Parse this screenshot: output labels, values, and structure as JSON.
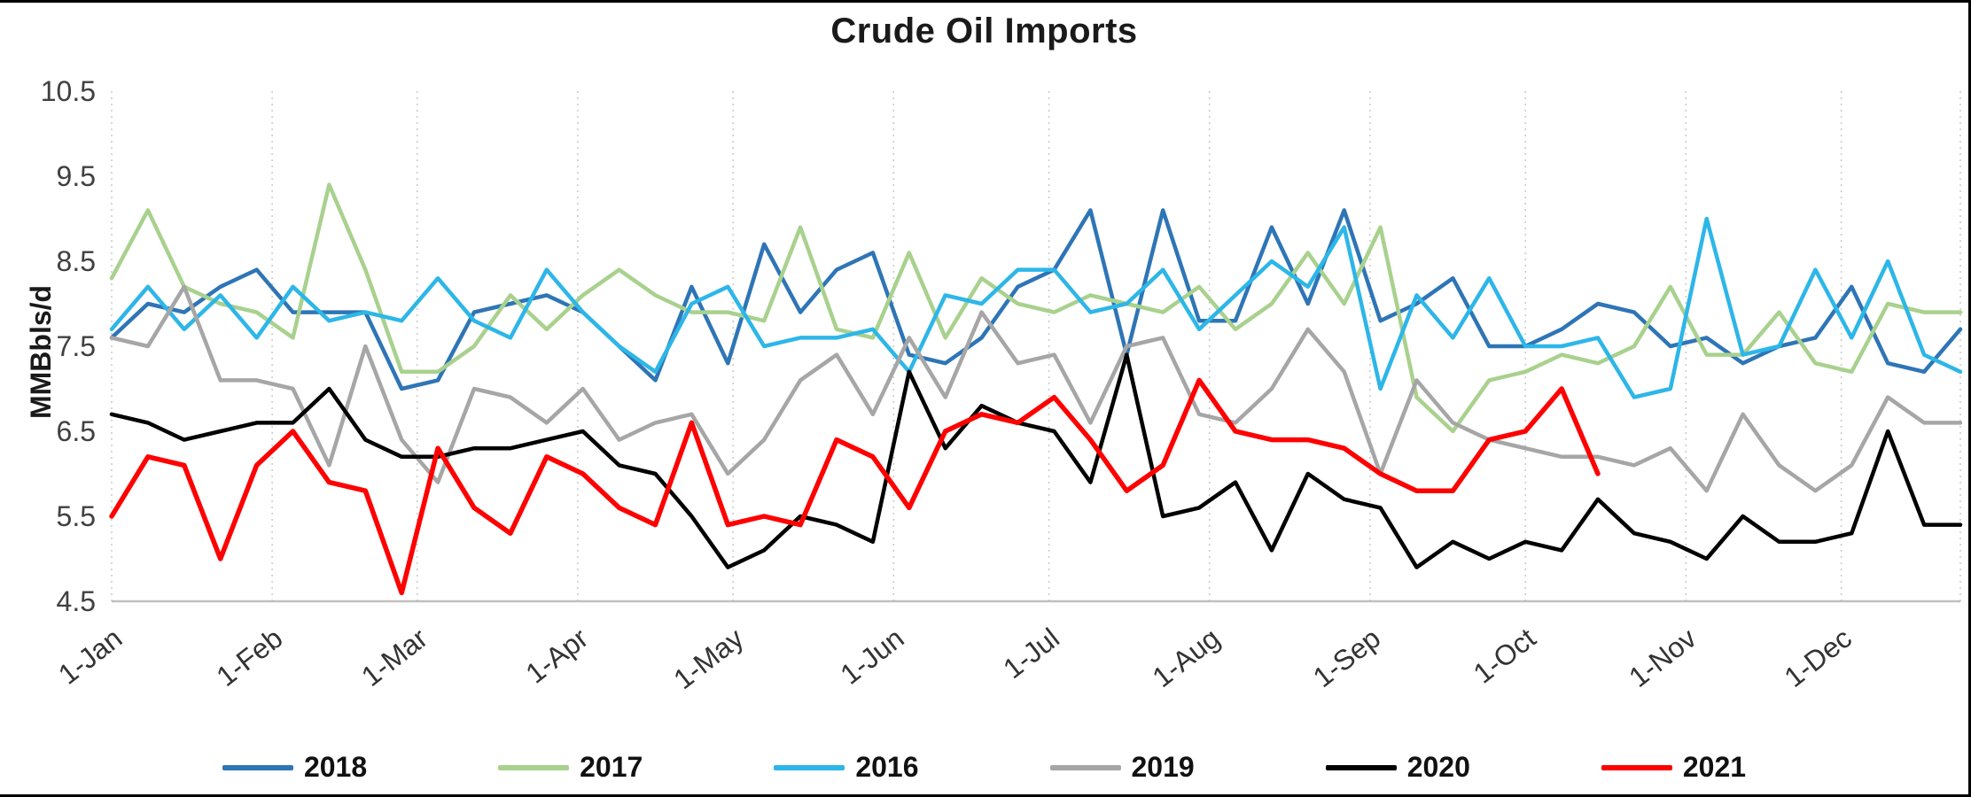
{
  "chart_data": {
    "type": "line",
    "title": "Crude Oil Imports",
    "xlabel": "",
    "ylabel": "MMBbls/d",
    "ylim": [
      4.5,
      10.5
    ],
    "ytick_step": 1.0,
    "y_tick_labels": [
      "10.5",
      "9.5",
      "8.5",
      "7.5",
      "6.5",
      "5.5",
      "4.5"
    ],
    "x_unit": "weekly observations across one year",
    "x_tick_labels": [
      "1-Jan",
      "1-Feb",
      "1-Mar",
      "1-Apr",
      "1-May",
      "1-Jun",
      "1-Jul",
      "1-Aug",
      "1-Sep",
      "1-Oct",
      "1-Nov",
      "1-Dec"
    ],
    "month_day_offsets": [
      0,
      31,
      59,
      90,
      120,
      151,
      181,
      212,
      243,
      273,
      304,
      334
    ],
    "grid": "vertical-dotted",
    "legend_position": "bottom",
    "series": [
      {
        "name": "2018",
        "color": "#2E75B6",
        "values": [
          7.6,
          8.0,
          7.9,
          8.2,
          8.4,
          7.9,
          7.9,
          7.9,
          7.0,
          7.1,
          7.9,
          8.0,
          8.1,
          7.9,
          7.5,
          7.1,
          8.2,
          7.3,
          8.7,
          7.9,
          8.4,
          8.6,
          7.4,
          7.3,
          7.6,
          8.2,
          8.4,
          9.1,
          7.4,
          9.1,
          7.8,
          7.8,
          8.9,
          8.0,
          9.1,
          7.8,
          8.0,
          8.3,
          7.5,
          7.5,
          7.7,
          8.0,
          7.9,
          7.5,
          7.6,
          7.3,
          7.5,
          7.6,
          8.2,
          7.3,
          7.2,
          7.7
        ]
      },
      {
        "name": "2017",
        "color": "#A9D18E",
        "values": [
          8.3,
          9.1,
          8.2,
          8.0,
          7.9,
          7.6,
          9.4,
          8.4,
          7.2,
          7.2,
          7.5,
          8.1,
          7.7,
          8.1,
          8.4,
          8.1,
          7.9,
          7.9,
          7.8,
          8.9,
          7.7,
          7.6,
          8.6,
          7.6,
          8.3,
          8.0,
          7.9,
          8.1,
          8.0,
          7.9,
          8.2,
          7.7,
          8.0,
          8.6,
          8.0,
          8.9,
          6.9,
          6.5,
          7.1,
          7.2,
          7.4,
          7.3,
          7.5,
          8.2,
          7.4,
          7.4,
          7.9,
          7.3,
          7.2,
          8.0,
          7.9,
          7.9
        ]
      },
      {
        "name": "2016",
        "color": "#2DB6E8",
        "values": [
          7.7,
          8.2,
          7.7,
          8.1,
          7.6,
          8.2,
          7.8,
          7.9,
          7.8,
          8.3,
          7.8,
          7.6,
          8.4,
          7.9,
          7.5,
          7.2,
          8.0,
          8.2,
          7.5,
          7.6,
          7.6,
          7.7,
          7.2,
          8.1,
          8.0,
          8.4,
          8.4,
          7.9,
          8.0,
          8.4,
          7.7,
          8.1,
          8.5,
          8.2,
          8.9,
          7.0,
          8.1,
          7.6,
          8.3,
          7.5,
          7.5,
          7.6,
          6.9,
          7.0,
          9.0,
          7.4,
          7.5,
          8.4,
          7.6,
          8.5,
          7.4,
          7.2
        ]
      },
      {
        "name": "2019",
        "color": "#A6A6A6",
        "values": [
          7.6,
          7.5,
          8.2,
          7.1,
          7.1,
          7.0,
          6.1,
          7.5,
          6.4,
          5.9,
          7.0,
          6.9,
          6.6,
          7.0,
          6.4,
          6.6,
          6.7,
          6.0,
          6.4,
          7.1,
          7.4,
          6.7,
          7.6,
          6.9,
          7.9,
          7.3,
          7.4,
          6.6,
          7.5,
          7.6,
          6.7,
          6.6,
          7.0,
          7.7,
          7.2,
          6.0,
          7.1,
          6.6,
          6.4,
          6.3,
          6.2,
          6.2,
          6.1,
          6.3,
          5.8,
          6.7,
          6.1,
          5.8,
          6.1,
          6.9,
          6.6,
          6.6
        ]
      },
      {
        "name": "2020",
        "color": "#000000",
        "values": [
          6.7,
          6.6,
          6.4,
          6.5,
          6.6,
          6.6,
          7.0,
          6.4,
          6.2,
          6.2,
          6.3,
          6.3,
          6.4,
          6.5,
          6.1,
          6.0,
          5.5,
          4.9,
          5.1,
          5.5,
          5.4,
          5.2,
          7.2,
          6.3,
          6.8,
          6.6,
          6.5,
          5.9,
          7.4,
          5.5,
          5.6,
          5.9,
          5.1,
          6.0,
          5.7,
          5.6,
          4.9,
          5.2,
          5.0,
          5.2,
          5.1,
          5.7,
          5.3,
          5.2,
          5.0,
          5.5,
          5.2,
          5.2,
          5.3,
          6.5,
          5.4,
          5.4
        ]
      },
      {
        "name": "2021",
        "color": "#FF0000",
        "values": [
          5.5,
          6.2,
          6.1,
          5.0,
          6.1,
          6.5,
          5.9,
          5.8,
          4.6,
          6.3,
          5.6,
          5.3,
          6.2,
          6.0,
          5.6,
          5.4,
          6.6,
          5.4,
          5.5,
          5.4,
          6.4,
          6.2,
          5.6,
          6.5,
          6.7,
          6.6,
          6.9,
          6.4,
          5.8,
          6.1,
          7.1,
          6.5,
          6.4,
          6.4,
          6.3,
          6.0,
          5.8,
          5.8,
          6.4,
          6.5,
          7.0,
          6.0
        ]
      }
    ]
  }
}
